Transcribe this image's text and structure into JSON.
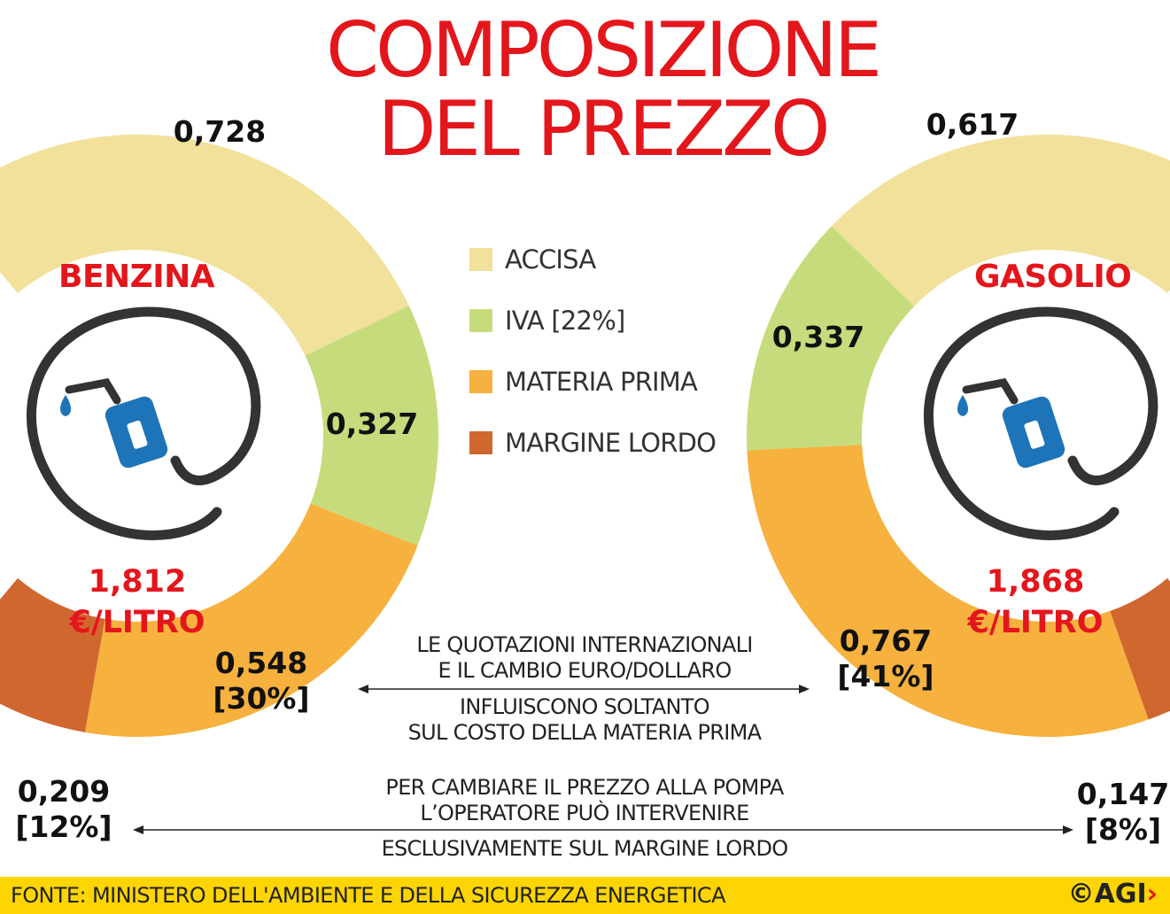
{
  "title_line1": "COMPOSIZIONE",
  "title_line2": "DEL PREZZO",
  "legend": [
    {
      "label": "ACCISA",
      "color": "#f2e19a"
    },
    {
      "label": "IVA [22%]",
      "color": "#c6dc7c"
    },
    {
      "label": "MATERIA PRIMA",
      "color": "#f7b13e"
    },
    {
      "label": "MARGINE LORDO",
      "color": "#d0672f"
    }
  ],
  "benzina": {
    "name": "BENZINA",
    "price": "1,812",
    "unit": "€/LITRO",
    "icon": "fuel-pump-icon"
  },
  "gasolio": {
    "name": "GASOLIO",
    "price": "1,868",
    "unit": "€/LITRO",
    "icon": "fuel-pump-icon"
  },
  "notes": {
    "quotazioni_1": "LE QUOTAZIONI INTERNAZIONALI",
    "quotazioni_2": "E IL CAMBIO EURO/DOLLARO",
    "quotazioni_3": "INFLUISCONO SOLTANTO",
    "quotazioni_4": "SUL COSTO DELLA MATERIA PRIMA",
    "prezzo_1": "PER CAMBIARE IL PREZZO ALLA POMPA",
    "prezzo_2": "L’OPERATORE PUÒ INTERVENIRE",
    "prezzo_3": "ESCLUSIVAMENTE SUL MARGINE LORDO"
  },
  "footer": {
    "source": "FONTE: MINISTERO DELL'AMBIENTE E DELLA SICUREZZA ENERGETICA",
    "logo": "©AGI",
    "logo_chevron": "›"
  },
  "chart_data": [
    {
      "type": "pie",
      "title": "BENZINA",
      "categories": [
        "ACCISA",
        "IVA [22%]",
        "MATERIA PRIMA",
        "MARGINE LORDO"
      ],
      "values": [
        0.728,
        0.327,
        0.548,
        0.209
      ],
      "labels": [
        "0,728",
        "0,327",
        "0,548\n[30%]",
        "0,209\n[12%]"
      ],
      "colors": [
        "#f2e19a",
        "#c6dc7c",
        "#f7b13e",
        "#d0672f"
      ],
      "total": 1.812
    },
    {
      "type": "pie",
      "title": "GASOLIO",
      "categories": [
        "ACCISA",
        "IVA [22%]",
        "MATERIA PRIMA",
        "MARGINE LORDO"
      ],
      "values": [
        0.617,
        0.337,
        0.767,
        0.147
      ],
      "labels": [
        "0,617",
        "0,337",
        "0,767\n[41%]",
        "0,147\n[8%]"
      ],
      "colors": [
        "#f2e19a",
        "#c6dc7c",
        "#f7b13e",
        "#d0672f"
      ],
      "total": 1.868
    }
  ]
}
